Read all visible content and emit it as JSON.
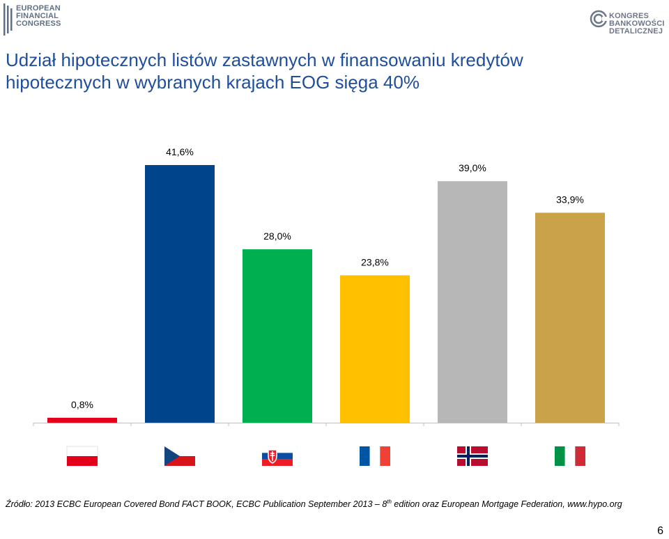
{
  "header": {
    "logo_left_lines": [
      "EUROPEAN",
      "FINANCIAL",
      "CONGRESS"
    ],
    "logo_right_lines": [
      "KONGRES",
      "BANKOWOŚCI",
      "DETALICZNEJ"
    ]
  },
  "title_lines": [
    "Udział hipotecznych listów zastawnych w finansowaniu kredytów",
    "hipotecznych w wybranych krajach EOG sięga 40%"
  ],
  "chart_data": {
    "type": "bar",
    "title": "",
    "xlabel": "",
    "ylabel": "",
    "ylim": [
      0,
      45
    ],
    "grid": false,
    "categories": [
      "Poland",
      "Czech Republic",
      "Slovakia",
      "France",
      "Norway",
      "Italy"
    ],
    "category_icons": [
      "flag-poland-icon",
      "flag-czech-icon",
      "flag-slovakia-icon",
      "flag-france-icon",
      "flag-norway-icon",
      "flag-italy-icon"
    ],
    "values": [
      0.8,
      41.6,
      28.0,
      23.8,
      39.0,
      33.9
    ],
    "value_labels": [
      "0,8%",
      "41,6%",
      "28,0%",
      "23,8%",
      "39,0%",
      "33,9%"
    ],
    "colors": [
      "#e4001b",
      "#00458b",
      "#00af4f",
      "#ffc000",
      "#b7b7b7",
      "#c9a24a"
    ]
  },
  "source": {
    "prefix": "Źródło: 2013 ECBC European Covered Bond FACT BOOK, ECBC Publication September 2013 – 8",
    "superscript": "th",
    "suffix": " edition oraz European Mortgage Federation, www.hypo.org"
  },
  "page_number": "6"
}
